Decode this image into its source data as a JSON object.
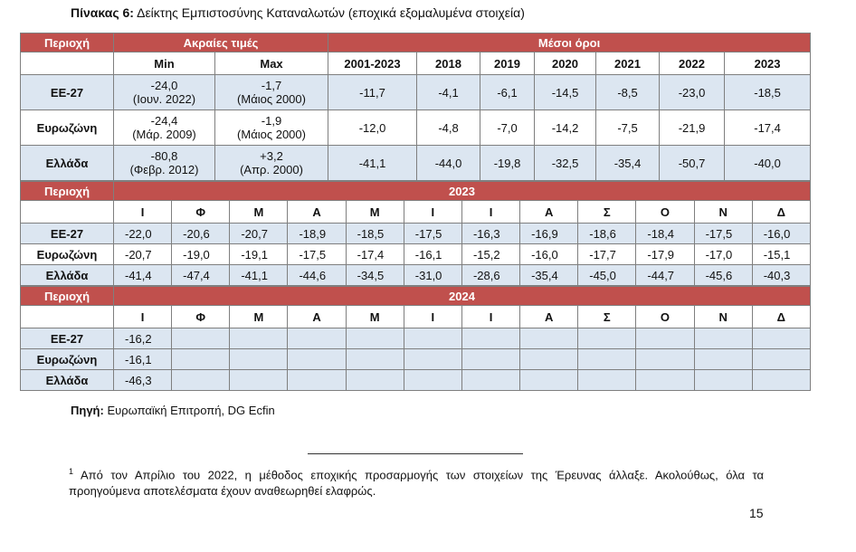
{
  "title_label": "Πίνακας 6:",
  "title_text": "Δείκτης Εμπιστοσύνης Καταναλωτών (εποχικά εξομαλυμένα στοιχεία)",
  "table1": {
    "region_header": "Περιοχή",
    "extremes_header": "Ακραίες τιμές",
    "averages_header": "Μέσοι όροι",
    "columns": [
      "Min",
      "Max",
      "2001-2023",
      "2018",
      "2019",
      "2020",
      "2021",
      "2022",
      "2023"
    ],
    "rows": [
      {
        "region": "ΕΕ-27",
        "min": "-24,0",
        "min_date": "(Ιουν. 2022)",
        "max": "-1,7",
        "max_date": "(Μάιος 2000)",
        "values": [
          "-11,7",
          "-4,1",
          "-6,1",
          "-14,5",
          "-8,5",
          "-23,0",
          "-18,5"
        ]
      },
      {
        "region": "Ευρωζώνη",
        "min": "-24,4",
        "min_date": "(Μάρ. 2009)",
        "max": "-1,9",
        "max_date": "(Μάιος 2000)",
        "values": [
          "-12,0",
          "-4,8",
          "-7,0",
          "-14,2",
          "-7,5",
          "-21,9",
          "-17,4"
        ]
      },
      {
        "region": "Ελλάδα",
        "min": "-80,8",
        "min_date": "(Φεβρ. 2012)",
        "max": "+3,2",
        "max_date": "(Απρ. 2000)",
        "values": [
          "-41,1",
          "-44,0",
          "-19,8",
          "-32,5",
          "-35,4",
          "-50,7",
          "-40,0"
        ]
      }
    ]
  },
  "table2": {
    "region_header": "Περιοχή",
    "year": "2023",
    "months": [
      "Ι",
      "Φ",
      "Μ",
      "Α",
      "Μ",
      "Ι",
      "Ι",
      "Α",
      "Σ",
      "Ο",
      "Ν",
      "Δ"
    ],
    "rows": [
      {
        "region": "ΕΕ-27",
        "values": [
          "-22,0",
          "-20,6",
          "-20,7",
          "-18,9",
          "-18,5",
          "-17,5",
          "-16,3",
          "-16,9",
          "-18,6",
          "-18,4",
          "-17,5",
          "-16,0"
        ]
      },
      {
        "region": "Ευρωζώνη",
        "values": [
          "-20,7",
          "-19,0",
          "-19,1",
          "-17,5",
          "-17,4",
          "-16,1",
          "-15,2",
          "-16,0",
          "-17,7",
          "-17,9",
          "-17,0",
          "-15,1"
        ]
      },
      {
        "region": "Ελλάδα",
        "values": [
          "-41,4",
          "-47,4",
          "-41,1",
          "-44,6",
          "-34,5",
          "-31,0",
          "-28,6",
          "-35,4",
          "-45,0",
          "-44,7",
          "-45,6",
          "-40,3"
        ]
      }
    ]
  },
  "table3": {
    "region_header": "Περιοχή",
    "year": "2024",
    "months": [
      "Ι",
      "Φ",
      "Μ",
      "Α",
      "Μ",
      "Ι",
      "Ι",
      "Α",
      "Σ",
      "Ο",
      "Ν",
      "Δ"
    ],
    "rows": [
      {
        "region": "ΕΕ-27",
        "values": [
          "-16,2"
        ]
      },
      {
        "region": "Ευρωζώνη",
        "values": [
          "-16,1"
        ]
      },
      {
        "region": "Ελλάδα",
        "values": [
          "-46,3"
        ]
      }
    ]
  },
  "source_label": "Πηγή:",
  "source_text": "Ευρωπαϊκή Επιτροπή, DG Ecfin",
  "footnote_mark": "1",
  "footnote_text": "Από τον Απρίλιο του 2022, η μέθοδος εποχικής προσαρμογής των στοιχείων της Έρευνας άλλαξε. Ακολούθως, όλα τα προηγούμενα αποτελέσματα έχουν αναθεωρηθεί ελαφρώς.",
  "page_number": "15"
}
